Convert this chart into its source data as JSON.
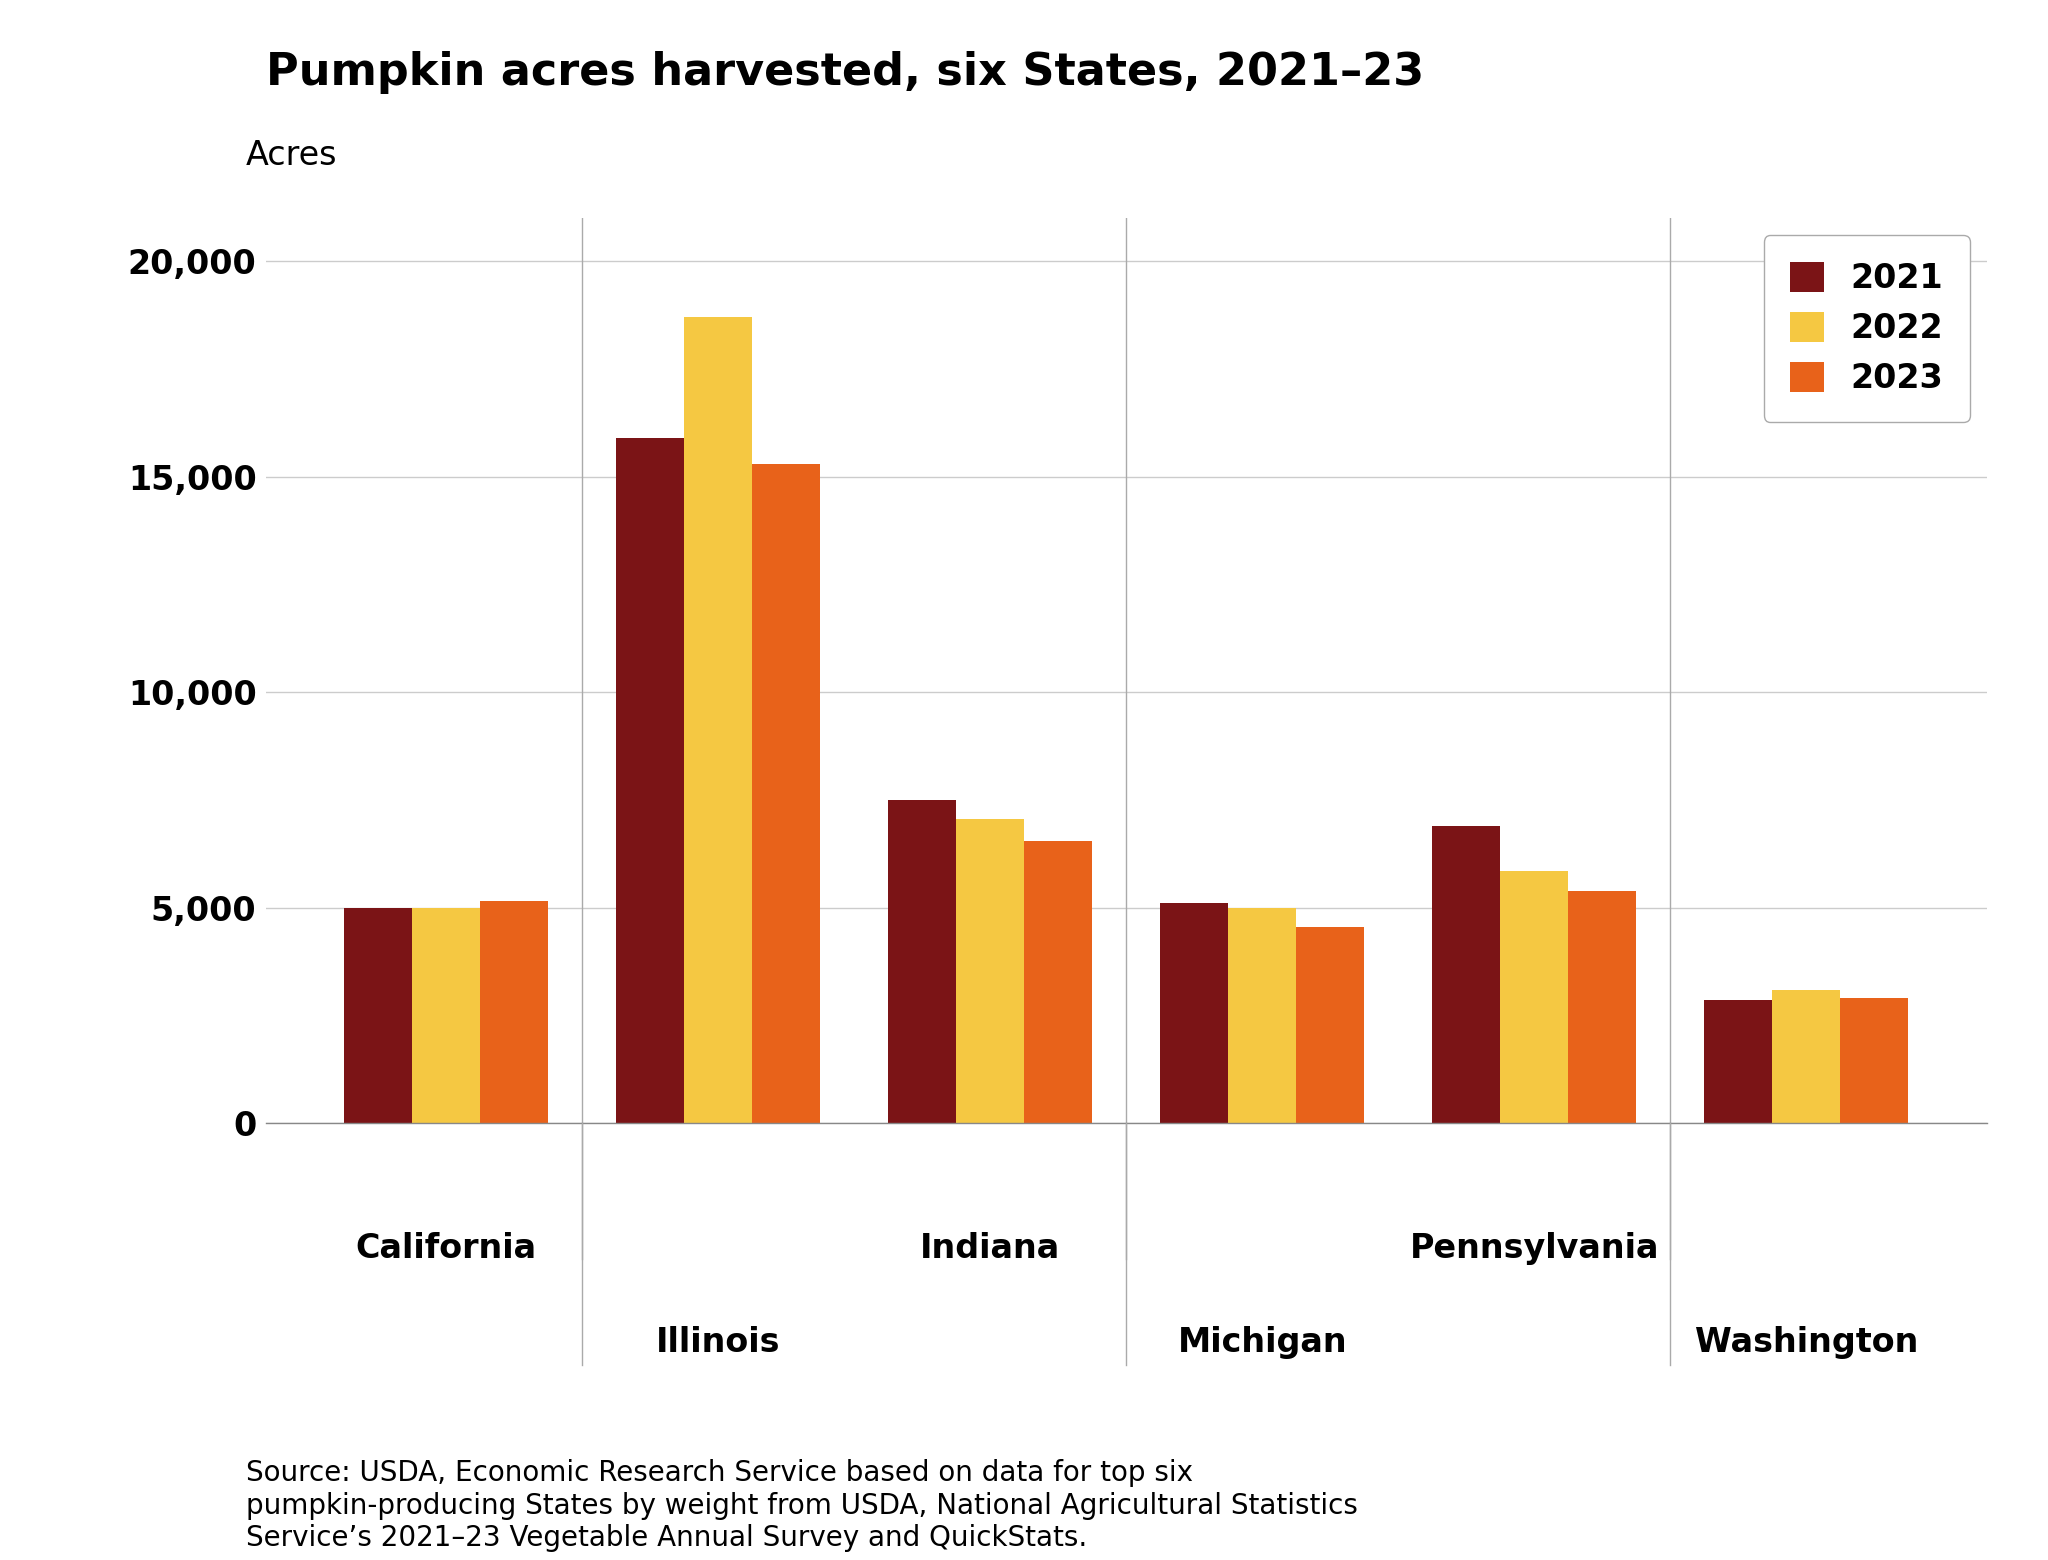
{
  "title": "Pumpkin acres harvested, six States, 2021–23",
  "ylabel": "Acres",
  "states": [
    "California",
    "Illinois",
    "Indiana",
    "Michigan",
    "Pennsylvania",
    "Washington"
  ],
  "years": [
    "2021",
    "2022",
    "2023"
  ],
  "colors": [
    "#7B1416",
    "#F5C842",
    "#E8621A"
  ],
  "values": {
    "2021": [
      5000,
      15900,
      7500,
      5100,
      6900,
      2850
    ],
    "2022": [
      5000,
      18700,
      7050,
      5000,
      5850,
      3100
    ],
    "2023": [
      5150,
      15300,
      6550,
      4550,
      5400,
      2900
    ]
  },
  "ylim": [
    0,
    21000
  ],
  "yticks": [
    0,
    5000,
    10000,
    15000,
    20000
  ],
  "ytick_labels": [
    "0",
    "5,000",
    "10,000",
    "15,000",
    "20,000"
  ],
  "source_text": "Source: USDA, Economic Research Service based on data for top six\npumpkin-producing States by weight from USDA, National Agricultural Statistics\nService’s 2021–23 Vegetable Annual Survey and QuickStats.",
  "background_color": "#ffffff",
  "grid_color": "#cccccc",
  "bar_width": 0.25,
  "title_fontsize": 32,
  "acres_label_fontsize": 24,
  "tick_fontsize": 24,
  "legend_fontsize": 24,
  "source_fontsize": 20,
  "state_label_fontsize": 24,
  "separator_color": "#aaaaaa",
  "state_pairs": [
    [
      "California",
      "Illinois"
    ],
    [
      "Indiana",
      "Michigan"
    ],
    [
      "Pennsylvania",
      "Washington"
    ]
  ]
}
